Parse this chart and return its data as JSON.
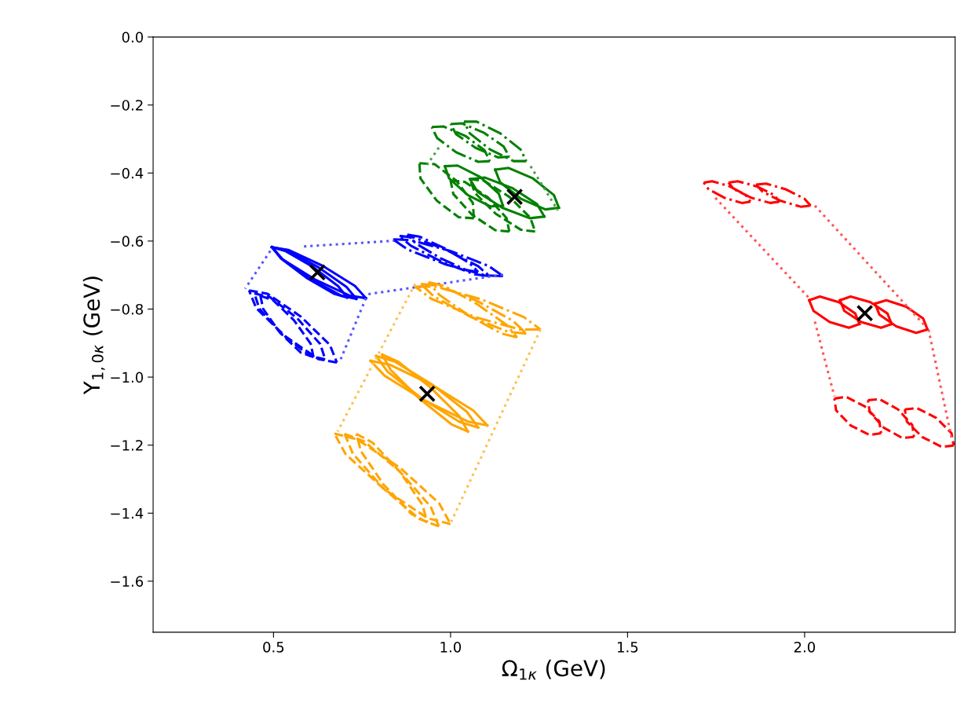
{
  "chart_data": {
    "type": "line",
    "xlabel": "Ω$_{1κ}$ (GeV)",
    "ylabel": "Y$_{1,0κ}$ (GeV)",
    "xlim": [
      0.16,
      2.425
    ],
    "ylim": [
      -1.75,
      0.0
    ],
    "xticks": [
      {
        "value": 0.5,
        "label": "0.5"
      },
      {
        "value": 1.0,
        "label": "1.0"
      },
      {
        "value": 1.5,
        "label": "1.5"
      },
      {
        "value": 2.0,
        "label": "2.0"
      }
    ],
    "yticks": [
      {
        "value": 0.0,
        "label": "0.0"
      },
      {
        "value": -0.2,
        "label": "−0.2"
      },
      {
        "value": -0.4,
        "label": "−0.4"
      },
      {
        "value": -0.6,
        "label": "−0.6"
      },
      {
        "value": -0.8,
        "label": "−0.8"
      },
      {
        "value": -1.0,
        "label": "−1.0"
      },
      {
        "value": -1.2,
        "label": "−1.2"
      },
      {
        "value": -1.4,
        "label": "−1.4"
      },
      {
        "value": -1.6,
        "label": "−1.6"
      }
    ],
    "grid": false,
    "marker": "none",
    "series": [
      {
        "color": "#0000ff",
        "line_style": "solid",
        "x": [
          0.761,
          0.714,
          0.617,
          0.526,
          0.495
        ],
        "values": [
          -0.768,
          -0.76,
          -0.713,
          -0.654,
          -0.618
        ]
      },
      {
        "color": "#0000ff",
        "line_style": "solid",
        "x": [
          0.495,
          0.542,
          0.639,
          0.73,
          0.761
        ],
        "values": [
          -0.618,
          -0.626,
          -0.673,
          -0.732,
          -0.768
        ]
      },
      {
        "color": "#0000ff",
        "line_style": "solid",
        "x": [
          0.734,
          0.692,
          0.605,
          0.524,
          0.496
        ],
        "values": [
          -0.77,
          -0.761,
          -0.712,
          -0.653,
          -0.618
        ]
      },
      {
        "color": "#0000ff",
        "line_style": "solid",
        "x": [
          0.496,
          0.538,
          0.625,
          0.706,
          0.734
        ],
        "values": [
          -0.618,
          -0.627,
          -0.676,
          -0.735,
          -0.77
        ]
      },
      {
        "color": "#0000ff",
        "line_style": "solid",
        "x": [
          0.708,
          0.671,
          0.593,
          0.521,
          0.496
        ],
        "values": [
          -0.766,
          -0.755,
          -0.708,
          -0.651,
          -0.618
        ]
      },
      {
        "color": "#0000ff",
        "line_style": "solid",
        "x": [
          0.496,
          0.533,
          0.611,
          0.683,
          0.708
        ],
        "values": [
          -0.618,
          -0.629,
          -0.676,
          -0.733,
          -0.766
        ]
      },
      {
        "color": "#0000ff",
        "line_style": "dashed",
        "x": [
          0.679,
          0.627,
          0.533,
          0.451,
          0.431
        ],
        "values": [
          -0.957,
          -0.947,
          -0.88,
          -0.797,
          -0.745
        ]
      },
      {
        "color": "#0000ff",
        "line_style": "dashed",
        "x": [
          0.431,
          0.483,
          0.577,
          0.659,
          0.679
        ],
        "values": [
          -0.745,
          -0.755,
          -0.822,
          -0.905,
          -0.957
        ]
      },
      {
        "color": "#0000ff",
        "line_style": "dashed",
        "x": [
          0.646,
          0.602,
          0.525,
          0.46,
          0.446
        ],
        "values": [
          -0.948,
          -0.937,
          -0.875,
          -0.799,
          -0.754
        ]
      },
      {
        "color": "#0000ff",
        "line_style": "dashed",
        "x": [
          0.446,
          0.49,
          0.567,
          0.632,
          0.646
        ],
        "values": [
          -0.754,
          -0.765,
          -0.827,
          -0.903,
          -0.948
        ]
      },
      {
        "color": "#0000ff",
        "line_style": "dashed",
        "x": [
          0.613,
          0.577,
          0.518,
          0.471,
          0.463
        ],
        "values": [
          -0.941,
          -0.928,
          -0.869,
          -0.8,
          -0.761
        ]
      },
      {
        "color": "#0000ff",
        "line_style": "dashed",
        "x": [
          0.463,
          0.499,
          0.558,
          0.605,
          0.613
        ],
        "values": [
          -0.761,
          -0.774,
          -0.833,
          -0.902,
          -0.941
        ]
      },
      {
        "color": "#0000ff",
        "line_style": "dashdot",
        "x": [
          1.148,
          1.099,
          0.987,
          0.879,
          0.838
        ],
        "values": [
          -0.703,
          -0.701,
          -0.669,
          -0.625,
          -0.595
        ]
      },
      {
        "color": "#0000ff",
        "line_style": "dashdot",
        "x": [
          0.838,
          0.887,
          0.999,
          1.107,
          1.148
        ],
        "values": [
          -0.595,
          -0.597,
          -0.629,
          -0.673,
          -0.703
        ]
      },
      {
        "color": "#0000ff",
        "line_style": "dashdot",
        "x": [
          1.11,
          1.068,
          0.976,
          0.888,
          0.856
        ],
        "values": [
          -0.703,
          -0.698,
          -0.661,
          -0.614,
          -0.585
        ]
      },
      {
        "color": "#0000ff",
        "line_style": "dashdot",
        "x": [
          0.856,
          0.898,
          0.99,
          1.078,
          1.11
        ],
        "values": [
          -0.585,
          -0.59,
          -0.627,
          -0.674,
          -0.703
        ]
      },
      {
        "color": "#0000ff",
        "line_style": "dashdot",
        "x": [
          1.078,
          1.044,
          0.971,
          0.902,
          0.878
        ],
        "values": [
          -0.691,
          -0.685,
          -0.65,
          -0.607,
          -0.581
        ]
      },
      {
        "color": "#0000ff",
        "line_style": "dashdot",
        "x": [
          0.878,
          0.912,
          0.985,
          1.054,
          1.078
        ],
        "values": [
          -0.581,
          -0.587,
          -0.622,
          -0.665,
          -0.691
        ]
      },
      {
        "color": "#5555ff",
        "line_style": "dotted",
        "x": [
          0.491,
          0.42
        ],
        "values": [
          -0.629,
          -0.74
        ]
      },
      {
        "color": "#5555ff",
        "line_style": "dotted",
        "x": [
          0.761,
          0.686
        ],
        "values": [
          -0.768,
          -0.957
        ]
      },
      {
        "color": "#5555ff",
        "line_style": "dotted",
        "x": [
          0.586,
          0.841
        ],
        "values": [
          -0.616,
          -0.599
        ]
      },
      {
        "color": "#5555ff",
        "line_style": "dotted",
        "x": [
          0.768,
          1.148
        ],
        "values": [
          -0.756,
          -0.699
        ]
      },
      {
        "color": "#ffa500",
        "line_style": "solid",
        "x": [
          1.104,
          1.048,
          0.927,
          0.814,
          0.774
        ],
        "values": [
          -1.142,
          -1.13,
          -1.069,
          -0.996,
          -0.952
        ]
      },
      {
        "color": "#ffa500",
        "line_style": "solid",
        "x": [
          0.774,
          0.83,
          0.951,
          1.064,
          1.104
        ],
        "values": [
          -0.952,
          -0.964,
          -1.025,
          -1.098,
          -1.142
        ]
      },
      {
        "color": "#ffa500",
        "line_style": "solid",
        "x": [
          1.078,
          1.026,
          0.92,
          0.822,
          0.79
        ],
        "values": [
          -1.148,
          -1.132,
          -1.064,
          -0.984,
          -0.938
        ]
      },
      {
        "color": "#ffa500",
        "line_style": "solid",
        "x": [
          0.79,
          0.842,
          0.948,
          1.046,
          1.078
        ],
        "values": [
          -0.938,
          -0.954,
          -1.022,
          -1.102,
          -1.148
        ]
      },
      {
        "color": "#ffa500",
        "line_style": "solid",
        "x": [
          1.049,
          1.003,
          0.913,
          0.831,
          0.807
        ],
        "values": [
          -1.16,
          -1.139,
          -1.064,
          -0.979,
          -0.934
        ]
      },
      {
        "color": "#ffa500",
        "line_style": "solid",
        "x": [
          0.807,
          0.853,
          0.943,
          1.025,
          1.049
        ],
        "values": [
          -0.934,
          -0.955,
          -1.03,
          -1.115,
          -1.16
        ]
      },
      {
        "color": "#ffa500",
        "line_style": "dashed",
        "x": [
          1.0,
          0.936,
          0.813,
          0.704,
          0.672
        ],
        "values": [
          -1.432,
          -1.415,
          -1.33,
          -1.227,
          -1.166
        ]
      },
      {
        "color": "#ffa500",
        "line_style": "dashed",
        "x": [
          0.672,
          0.736,
          0.859,
          0.968,
          1.0
        ],
        "values": [
          -1.166,
          -1.183,
          -1.268,
          -1.371,
          -1.432
        ]
      },
      {
        "color": "#ffa500",
        "line_style": "dashed",
        "x": [
          0.967,
          0.912,
          0.811,
          0.724,
          0.701
        ],
        "values": [
          -1.439,
          -1.417,
          -1.328,
          -1.225,
          -1.167
        ]
      },
      {
        "color": "#ffa500",
        "line_style": "dashed",
        "x": [
          0.701,
          0.756,
          0.857,
          0.944,
          0.967
        ],
        "values": [
          -1.167,
          -1.189,
          -1.278,
          -1.381,
          -1.439
        ]
      },
      {
        "color": "#ffa500",
        "line_style": "dashed",
        "x": [
          0.934,
          0.889,
          0.811,
          0.747,
          0.734
        ],
        "values": [
          -1.427,
          -1.402,
          -1.316,
          -1.218,
          -1.167
        ]
      },
      {
        "color": "#ffa500",
        "line_style": "dashed",
        "x": [
          0.734,
          0.779,
          0.857,
          0.921,
          0.934
        ],
        "values": [
          -1.167,
          -1.192,
          -1.278,
          -1.376,
          -1.427
        ]
      },
      {
        "color": "#ffa500",
        "line_style": "dashdot",
        "x": [
          1.254,
          1.196,
          1.068,
          0.946,
          0.9
        ],
        "values": [
          -0.86,
          -0.86,
          -0.823,
          -0.77,
          -0.734
        ]
      },
      {
        "color": "#ffa500",
        "line_style": "dashdot",
        "x": [
          0.9,
          0.958,
          1.086,
          1.208,
          1.254
        ],
        "values": [
          -0.734,
          -0.734,
          -0.771,
          -0.824,
          -0.86
        ]
      },
      {
        "color": "#ffa500",
        "line_style": "dashdot",
        "x": [
          1.214,
          1.163,
          1.055,
          0.953,
          0.916
        ],
        "values": [
          -0.872,
          -0.867,
          -0.822,
          -0.763,
          -0.726
        ]
      },
      {
        "color": "#ffa500",
        "line_style": "dashdot",
        "x": [
          0.916,
          0.967,
          1.075,
          1.177,
          1.214
        ],
        "values": [
          -0.726,
          -0.731,
          -0.776,
          -0.835,
          -0.872
        ]
      },
      {
        "color": "#ffa500",
        "line_style": "dashdot",
        "x": [
          1.188,
          1.144,
          1.053,
          0.968,
          0.938
        ],
        "values": [
          -0.883,
          -0.872,
          -0.82,
          -0.758,
          -0.721
        ]
      },
      {
        "color": "#ffa500",
        "line_style": "dashdot",
        "x": [
          0.938,
          0.982,
          1.073,
          1.158,
          1.188
        ],
        "values": [
          -0.721,
          -0.732,
          -0.784,
          -0.846,
          -0.883
        ]
      },
      {
        "color": "#ffc04d",
        "line_style": "dotted",
        "x": [
          0.9,
          0.681
        ],
        "values": [
          -0.726,
          -1.16
        ]
      },
      {
        "color": "#ffc04d",
        "line_style": "dotted",
        "x": [
          1.254,
          1.002
        ],
        "values": [
          -0.86,
          -1.425
        ]
      },
      {
        "color": "#008000",
        "line_style": "solid",
        "x": [
          1.148,
          1.112,
          1.049,
          0.996,
          0.984
        ],
        "values": [
          -0.496,
          -0.498,
          -0.465,
          -0.416,
          -0.38
        ]
      },
      {
        "color": "#008000",
        "line_style": "solid",
        "x": [
          0.984,
          1.02,
          1.083,
          1.136,
          1.148
        ],
        "values": [
          -0.38,
          -0.378,
          -0.411,
          -0.46,
          -0.496
        ]
      },
      {
        "color": "#008000",
        "line_style": "solid",
        "x": [
          1.265,
          1.224,
          1.146,
          1.076,
          1.055
        ],
        "values": [
          -0.528,
          -0.533,
          -0.502,
          -0.455,
          -0.418
        ]
      },
      {
        "color": "#008000",
        "line_style": "solid",
        "x": [
          1.055,
          1.096,
          1.174,
          1.244,
          1.265
        ],
        "values": [
          -0.418,
          -0.413,
          -0.444,
          -0.491,
          -0.528
        ]
      },
      {
        "color": "#008000",
        "line_style": "solid",
        "x": [
          1.306,
          1.268,
          1.199,
          1.14,
          1.126
        ],
        "values": [
          -0.502,
          -0.507,
          -0.476,
          -0.427,
          -0.39
        ]
      },
      {
        "color": "#008000",
        "line_style": "solid",
        "x": [
          1.126,
          1.164,
          1.233,
          1.292,
          1.306
        ],
        "values": [
          -0.39,
          -0.385,
          -0.416,
          -0.465,
          -0.502
        ]
      },
      {
        "color": "#008000",
        "line_style": "dashed",
        "x": [
          1.066,
          1.023,
          0.961,
          0.915,
          0.912
        ],
        "values": [
          -0.533,
          -0.53,
          -0.481,
          -0.416,
          -0.371
        ]
      },
      {
        "color": "#008000",
        "line_style": "dashed",
        "x": [
          0.912,
          0.955,
          1.017,
          1.063,
          1.066
        ],
        "values": [
          -0.371,
          -0.374,
          -0.423,
          -0.488,
          -0.533
        ]
      },
      {
        "color": "#008000",
        "line_style": "dashed",
        "x": [
          1.166,
          1.126,
          1.061,
          1.008,
          1.0
        ],
        "values": [
          -0.572,
          -0.568,
          -0.523,
          -0.462,
          -0.422
        ]
      },
      {
        "color": "#008000",
        "line_style": "dashed",
        "x": [
          1.0,
          1.04,
          1.105,
          1.158,
          1.166
        ],
        "values": [
          -0.422,
          -0.426,
          -0.471,
          -0.532,
          -0.572
        ]
      },
      {
        "color": "#008000",
        "line_style": "dashed",
        "x": [
          1.239,
          1.199,
          1.128,
          1.069,
          1.055
        ],
        "values": [
          -0.572,
          -0.567,
          -0.52,
          -0.459,
          -0.418
        ]
      },
      {
        "color": "#008000",
        "line_style": "dashed",
        "x": [
          1.055,
          1.095,
          1.166,
          1.225,
          1.239
        ],
        "values": [
          -0.418,
          -0.423,
          -0.47,
          -0.531,
          -0.572
        ]
      },
      {
        "color": "#008000",
        "line_style": "dashdot",
        "x": [
          1.111,
          1.078,
          1.016,
          0.962,
          0.947
        ],
        "values": [
          -0.365,
          -0.367,
          -0.339,
          -0.297,
          -0.265
        ]
      },
      {
        "color": "#008000",
        "line_style": "dashdot",
        "x": [
          0.947,
          0.98,
          1.042,
          1.096,
          1.111
        ],
        "values": [
          -0.265,
          -0.263,
          -0.291,
          -0.333,
          -0.365
        ]
      },
      {
        "color": "#008000",
        "line_style": "dashdot",
        "x": [
          1.166,
          1.134,
          1.071,
          1.016,
          1.0
        ],
        "values": [
          -0.352,
          -0.354,
          -0.326,
          -0.286,
          -0.256
        ]
      },
      {
        "color": "#008000",
        "line_style": "dashdot",
        "x": [
          1.0,
          1.032,
          1.095,
          1.15,
          1.166
        ],
        "values": [
          -0.256,
          -0.254,
          -0.282,
          -0.322,
          -0.352
        ]
      },
      {
        "color": "#008000",
        "line_style": "dashdot",
        "x": [
          1.214,
          1.178,
          1.112,
          1.054,
          1.038
        ],
        "values": [
          -0.365,
          -0.365,
          -0.331,
          -0.283,
          -0.249
        ]
      },
      {
        "color": "#008000",
        "line_style": "dashdot",
        "x": [
          1.038,
          1.074,
          1.14,
          1.198,
          1.214
        ],
        "values": [
          -0.249,
          -0.249,
          -0.283,
          -0.331,
          -0.365
        ]
      },
      {
        "color": "#4d9f4d",
        "line_style": "dotted",
        "x": [
          0.967,
          0.934
        ],
        "values": [
          -0.325,
          -0.376
        ]
      },
      {
        "color": "#4d9f4d",
        "line_style": "dotted",
        "x": [
          1.226,
          1.303
        ],
        "values": [
          -0.38,
          -0.51
        ]
      },
      {
        "color": "#ff0000",
        "line_style": "solid",
        "x": [
          2.155,
          2.125,
          2.071,
          2.025,
          2.013
        ],
        "values": [
          -0.844,
          -0.855,
          -0.838,
          -0.805,
          -0.774
        ]
      },
      {
        "color": "#ff0000",
        "line_style": "solid",
        "x": [
          2.013,
          2.043,
          2.097,
          2.143,
          2.155
        ],
        "values": [
          -0.774,
          -0.763,
          -0.78,
          -0.813,
          -0.844
        ]
      },
      {
        "color": "#ff0000",
        "line_style": "solid",
        "x": [
          2.246,
          2.216,
          2.16,
          2.112,
          2.1
        ],
        "values": [
          -0.844,
          -0.855,
          -0.838,
          -0.805,
          -0.774
        ]
      },
      {
        "color": "#ff0000",
        "line_style": "solid",
        "x": [
          2.1,
          2.13,
          2.186,
          2.234,
          2.246
        ],
        "values": [
          -0.774,
          -0.763,
          -0.78,
          -0.813,
          -0.844
        ]
      },
      {
        "color": "#ff0000",
        "line_style": "solid",
        "x": [
          2.347,
          2.315,
          2.259,
          2.211,
          2.199
        ],
        "values": [
          -0.86,
          -0.87,
          -0.851,
          -0.816,
          -0.784
        ]
      },
      {
        "color": "#ff0000",
        "line_style": "solid",
        "x": [
          2.199,
          2.231,
          2.287,
          2.335,
          2.347
        ],
        "values": [
          -0.784,
          -0.774,
          -0.793,
          -0.828,
          -0.86
        ]
      },
      {
        "color": "#ff0000",
        "line_style": "dashed",
        "x": [
          2.216,
          2.183,
          2.13,
          2.089,
          2.084
        ],
        "values": [
          -1.165,
          -1.17,
          -1.142,
          -1.098,
          -1.063
        ]
      },
      {
        "color": "#ff0000",
        "line_style": "dashed",
        "x": [
          2.084,
          2.117,
          2.17,
          2.211,
          2.216
        ],
        "values": [
          -1.063,
          -1.058,
          -1.086,
          -1.13,
          -1.165
        ]
      },
      {
        "color": "#ff0000",
        "line_style": "dashed",
        "x": [
          2.309,
          2.276,
          2.224,
          2.184,
          2.179
        ],
        "values": [
          -1.176,
          -1.179,
          -1.149,
          -1.103,
          -1.068
        ]
      },
      {
        "color": "#ff0000",
        "line_style": "dashed",
        "x": [
          2.179,
          2.212,
          2.264,
          2.304,
          2.309
        ],
        "values": [
          -1.068,
          -1.065,
          -1.095,
          -1.141,
          -1.176
        ]
      },
      {
        "color": "#ff0000",
        "line_style": "dashed",
        "x": [
          2.421,
          2.387,
          2.332,
          2.289,
          2.283
        ],
        "values": [
          -1.201,
          -1.205,
          -1.176,
          -1.131,
          -1.095
        ]
      },
      {
        "color": "#ff0000",
        "line_style": "dashed",
        "x": [
          2.283,
          2.317,
          2.372,
          2.415,
          2.421
        ],
        "values": [
          -1.095,
          -1.091,
          -1.12,
          -1.165,
          -1.201
        ]
      },
      {
        "color": "#ff0000",
        "line_style": "dashdot",
        "x": [
          1.847,
          1.823,
          1.774,
          1.729,
          1.715
        ],
        "values": [
          -0.484,
          -0.488,
          -0.473,
          -0.448,
          -0.428
        ]
      },
      {
        "color": "#ff0000",
        "line_style": "dashdot",
        "x": [
          1.715,
          1.739,
          1.788,
          1.833,
          1.847
        ],
        "values": [
          -0.428,
          -0.424,
          -0.439,
          -0.464,
          -0.484
        ]
      },
      {
        "color": "#ff0000",
        "line_style": "dashdot",
        "x": [
          1.929,
          1.903,
          1.85,
          1.801,
          1.785
        ],
        "values": [
          -0.484,
          -0.488,
          -0.473,
          -0.448,
          -0.428
        ]
      },
      {
        "color": "#ff0000",
        "line_style": "dashdot",
        "x": [
          1.785,
          1.811,
          1.864,
          1.913,
          1.929
        ],
        "values": [
          -0.428,
          -0.424,
          -0.439,
          -0.464,
          -0.484
        ]
      },
      {
        "color": "#ff0000",
        "line_style": "dashdot",
        "x": [
          2.017,
          1.989,
          1.933,
          1.881,
          1.863
        ],
        "values": [
          -0.496,
          -0.499,
          -0.482,
          -0.455,
          -0.434
        ]
      },
      {
        "color": "#ff0000",
        "line_style": "dashdot",
        "x": [
          1.863,
          1.891,
          1.947,
          1.999,
          2.017
        ],
        "values": [
          -0.434,
          -0.431,
          -0.448,
          -0.475,
          -0.496
        ]
      },
      {
        "color": "#ff5555",
        "line_style": "dotted",
        "x": [
          1.748,
          2.013
        ],
        "values": [
          -0.473,
          -0.768
        ]
      },
      {
        "color": "#ff5555",
        "line_style": "dotted",
        "x": [
          2.029,
          2.084
        ],
        "values": [
          -0.837,
          -1.056
        ]
      },
      {
        "color": "#ff5555",
        "line_style": "dotted",
        "x": [
          2.029,
          2.345
        ],
        "values": [
          -0.496,
          -0.855
        ]
      },
      {
        "color": "#ff5555",
        "line_style": "dotted",
        "x": [
          2.35,
          2.416
        ],
        "values": [
          -0.86,
          -1.183
        ]
      },
      {
        "type": "scatter",
        "marker": "cross",
        "color": "#000000",
        "x": [
          0.624,
          0.934,
          1.181,
          2.17
        ],
        "values": [
          -0.692,
          -1.049,
          -0.47,
          -0.812
        ]
      }
    ]
  }
}
